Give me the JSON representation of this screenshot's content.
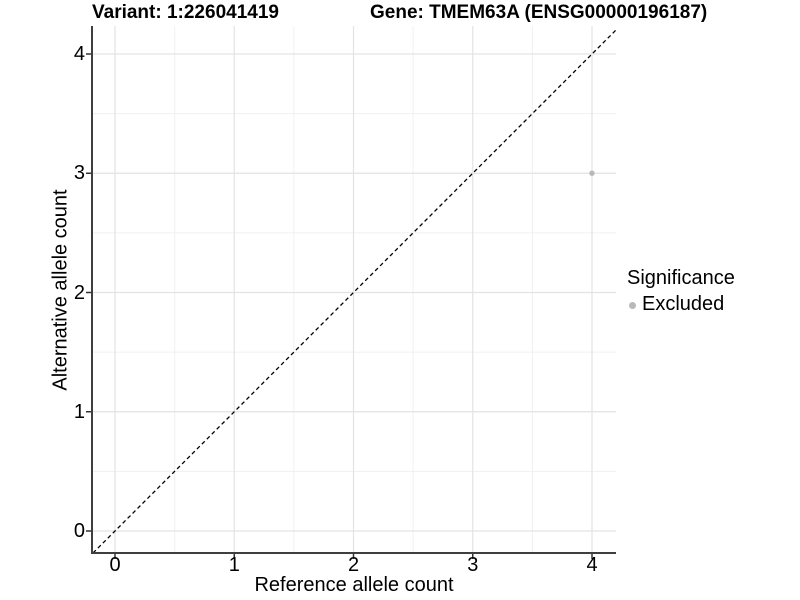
{
  "chart_data": {
    "type": "scatter",
    "title_left": "Variant: 1:226041419",
    "title_right": "Gene: TMEM63A (ENSG00000196187)",
    "xlabel": "Reference allele count",
    "ylabel": "Alternative allele count",
    "xlim": [
      -0.2,
      4.2
    ],
    "ylim": [
      -0.2,
      4.2
    ],
    "x_ticks": [
      0,
      1,
      2,
      3,
      4
    ],
    "y_ticks": [
      0,
      1,
      2,
      3,
      4
    ],
    "x_minor_ticks": [
      0.5,
      1.5,
      2.5,
      3.5
    ],
    "y_minor_ticks": [
      0.5,
      1.5,
      2.5,
      3.5
    ],
    "grid": true,
    "points": [
      {
        "x": 4,
        "y": 3,
        "series": "Excluded"
      }
    ],
    "reference_line": {
      "type": "identity",
      "slope": 1,
      "intercept": 0,
      "style": "dashed"
    },
    "legend": {
      "title": "Significance",
      "position": "right",
      "entries": [
        {
          "label": "Excluded",
          "color": "#b9b9b9"
        }
      ]
    },
    "colors": {
      "point": "#b9b9b9",
      "grid_major": "#e3e3e3",
      "grid_minor": "#f0f0f0",
      "axis_line": "#3f3f3f",
      "tick_mark": "#333333",
      "reference_line": "#000000",
      "text": "#000000",
      "background": "#ffffff"
    }
  }
}
